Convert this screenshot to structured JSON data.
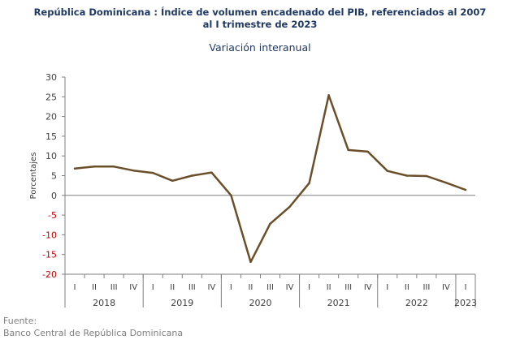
{
  "chart_data": {
    "type": "line",
    "title_line1": "República Dominicana : Índice de volumen encadenado del PIB, referenciados al 2007",
    "title_line2": "al I trimestre de 2023",
    "subtitle": "Variación interanual",
    "ylabel": "Porcentajes",
    "xlabel": "",
    "ylim": [
      -20,
      30
    ],
    "yticks": [
      30,
      25,
      20,
      15,
      10,
      5,
      0,
      -5,
      -10,
      -15,
      -20
    ],
    "grid": false,
    "legend": "none",
    "line_color": "#6b4f2a",
    "axis_color": "#7f7f7f",
    "negative_tick_color": "#c00000",
    "years": [
      {
        "label": "2018",
        "quarters": [
          "I",
          "II",
          "III",
          "IV"
        ]
      },
      {
        "label": "2019",
        "quarters": [
          "I",
          "II",
          "III",
          "IV"
        ]
      },
      {
        "label": "2020",
        "quarters": [
          "I",
          "II",
          "III",
          "IV"
        ]
      },
      {
        "label": "2021",
        "quarters": [
          "I",
          "II",
          "III",
          "IV"
        ]
      },
      {
        "label": "2022",
        "quarters": [
          "I",
          "II",
          "III",
          "IV"
        ]
      },
      {
        "label": "2023",
        "quarters": [
          "I"
        ]
      }
    ],
    "values": [
      6.8,
      7.3,
      7.3,
      6.3,
      5.7,
      3.7,
      5.0,
      5.8,
      0.0,
      -16.9,
      -7.2,
      -2.9,
      3.1,
      25.4,
      11.5,
      11.1,
      6.2,
      5.0,
      4.9,
      3.2,
      1.4
    ]
  },
  "footer": {
    "label": "Fuente:",
    "source": "Banco Central de República Dominicana"
  }
}
